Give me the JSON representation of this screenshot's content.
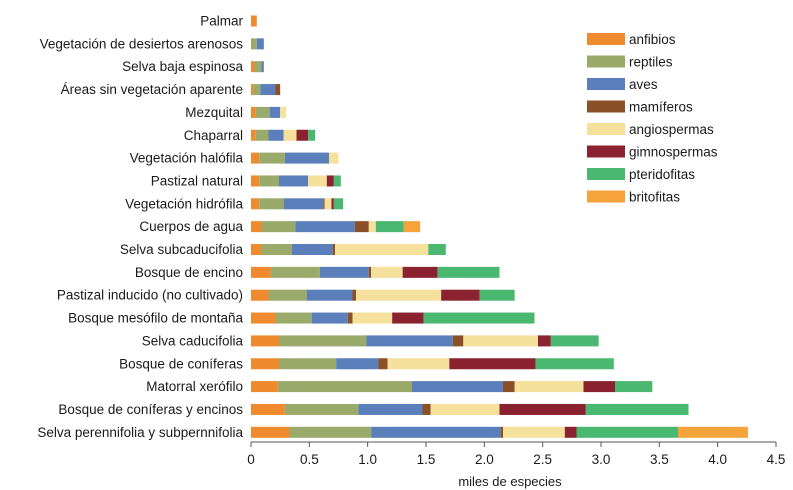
{
  "chart_data": {
    "type": "bar",
    "orientation": "horizontal",
    "stacked": true,
    "title": "",
    "xlabel": "miles de especies",
    "ylabel": "",
    "xlim": [
      0,
      4.5
    ],
    "xticks": [
      0,
      0.5,
      1,
      1.5,
      2,
      2.5,
      3,
      3.5,
      4,
      4.5
    ],
    "xtick_labels": [
      "0",
      "0.5",
      "1.0",
      "1.5",
      "2.0",
      "2.5",
      "3.0",
      "3.5",
      "4.0",
      "4.5"
    ],
    "grid": false,
    "legend_position": "top-right",
    "categories": [
      "Palmar",
      "Vegetación de desiertos arenosos",
      "Selva baja espinosa",
      "Áreas sin vegetación aparente",
      "Mezquital",
      "Chaparral",
      "Vegetación halófila",
      "Pastizal natural",
      "Vegetación hidrófila",
      "Cuerpos de agua",
      "Selva subcaducifolia",
      "Bosque de encino",
      "Pastizal inducido (no cultivado)",
      "Bosque mesófilo de montaña",
      "Selva caducifolia",
      "Bosque de coníferas",
      "Matorral xerófilo",
      "Bosque de coníferas y encinos",
      "Selva perennifolia y subpernnifolia"
    ],
    "series": [
      {
        "name": "anfibios",
        "color": "#f08a2e",
        "values": [
          0.05,
          0.0,
          0.03,
          0.02,
          0.04,
          0.04,
          0.07,
          0.07,
          0.07,
          0.09,
          0.09,
          0.17,
          0.15,
          0.21,
          0.24,
          0.24,
          0.23,
          0.29,
          0.33
        ]
      },
      {
        "name": "reptiles",
        "color": "#9aaa6a",
        "values": [
          0.0,
          0.05,
          0.06,
          0.06,
          0.12,
          0.11,
          0.22,
          0.17,
          0.21,
          0.29,
          0.26,
          0.42,
          0.33,
          0.31,
          0.75,
          0.49,
          1.15,
          0.63,
          0.7
        ]
      },
      {
        "name": "aves",
        "color": "#5a7fba",
        "values": [
          0.0,
          0.06,
          0.02,
          0.13,
          0.09,
          0.13,
          0.38,
          0.25,
          0.34,
          0.51,
          0.35,
          0.42,
          0.39,
          0.31,
          0.74,
          0.36,
          0.78,
          0.55,
          1.11
        ]
      },
      {
        "name": "mamíferos",
        "color": "#8a5128",
        "values": [
          0.0,
          0.0,
          0.0,
          0.04,
          0.0,
          0.0,
          0.0,
          0.0,
          0.01,
          0.12,
          0.02,
          0.02,
          0.03,
          0.04,
          0.09,
          0.08,
          0.1,
          0.07,
          0.02
        ]
      },
      {
        "name": "angiospermas",
        "color": "#f5e09c",
        "values": [
          0.0,
          0.0,
          0.0,
          0.0,
          0.05,
          0.11,
          0.08,
          0.16,
          0.06,
          0.06,
          0.8,
          0.27,
          0.73,
          0.34,
          0.64,
          0.53,
          0.59,
          0.59,
          0.53
        ]
      },
      {
        "name": "gimnospermas",
        "color": "#8b2230",
        "values": [
          0.0,
          0.0,
          0.0,
          0.0,
          0.0,
          0.1,
          0.0,
          0.06,
          0.02,
          0.0,
          0.0,
          0.3,
          0.33,
          0.27,
          0.11,
          0.74,
          0.27,
          0.74,
          0.1
        ]
      },
      {
        "name": "pteridofitas",
        "color": "#4ab870",
        "values": [
          0.0,
          0.0,
          0.0,
          0.0,
          0.0,
          0.06,
          0.0,
          0.06,
          0.08,
          0.24,
          0.15,
          0.53,
          0.3,
          0.95,
          0.41,
          0.67,
          0.32,
          0.88,
          0.87
        ]
      },
      {
        "name": "britofitas",
        "color": "#f5a33a",
        "values": [
          0.0,
          0.0,
          0.0,
          0.0,
          0.0,
          0.0,
          0.0,
          0.0,
          0.0,
          0.14,
          0.0,
          0.0,
          0.0,
          0.0,
          0.0,
          0.0,
          0.0,
          0.0,
          0.6
        ]
      }
    ]
  }
}
